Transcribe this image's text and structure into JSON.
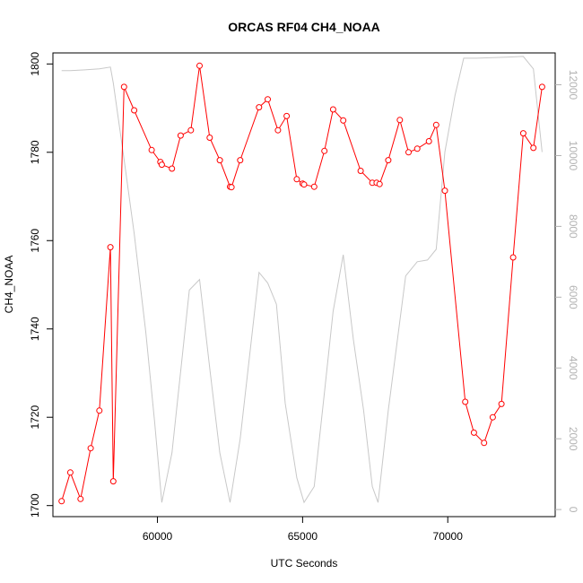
{
  "chart_data": {
    "type": "line",
    "title": "ORCAS RF04 CH4_NOAA",
    "xlabel": "UTC Seconds",
    "ylabel": "CH4_NOAA",
    "xlim": [
      56400,
      73700
    ],
    "ylim": [
      1697.5,
      1802.5
    ],
    "y2lim": [
      -200,
      12900
    ],
    "x_ticks": [
      60000,
      65000,
      70000
    ],
    "y_ticks": [
      1700,
      1720,
      1740,
      1760,
      1780,
      1800
    ],
    "y2_ticks": [
      0,
      2000,
      4000,
      6000,
      8000,
      10000,
      12000
    ],
    "grid": false,
    "legend": "none",
    "series": [
      {
        "axis": "left",
        "color": "#ff0000",
        "marker": "circle-open",
        "x": [
          56700,
          57000,
          57350,
          57700,
          58000,
          58380,
          58480,
          58850,
          59200,
          59800,
          60100,
          60150,
          60500,
          60800,
          61150,
          61450,
          61800,
          62150,
          62500,
          62550,
          62850,
          63500,
          63800,
          64150,
          64450,
          64800,
          65000,
          65050,
          65400,
          65750,
          66050,
          66400,
          67000,
          67400,
          67550,
          67650,
          67950,
          68350,
          68650,
          68950,
          69350,
          69600,
          69900,
          70600,
          70900,
          71250,
          71550,
          71850,
          72250,
          72600,
          72950,
          73250
        ],
        "y": [
          1701,
          1707.5,
          1701.5,
          1713,
          1721.5,
          1758.5,
          1705.5,
          1794.8,
          1789.5,
          1780.5,
          1777.8,
          1777.2,
          1776.3,
          1783.8,
          1785,
          1799.6,
          1783.3,
          1778.2,
          1772.2,
          1772.1,
          1778.2,
          1790.2,
          1792,
          1785,
          1788.2,
          1773.9,
          1772.9,
          1772.7,
          1772.2,
          1780.3,
          1789.7,
          1787.2,
          1775.8,
          1773.1,
          1773.1,
          1772.8,
          1778.2,
          1787.3,
          1780,
          1780.8,
          1782.5,
          1786.2,
          1771.3,
          1723.5,
          1716.5,
          1714.2,
          1720,
          1723,
          1756.2,
          1784.3,
          1781,
          1794.8
        ]
      },
      {
        "axis": "right",
        "color": "#c8c8c8",
        "marker": "none",
        "x": [
          56700,
          57000,
          57500,
          58000,
          58380,
          58480,
          58850,
          59200,
          59600,
          59900,
          60150,
          60500,
          61100,
          61450,
          61800,
          62150,
          62500,
          62850,
          63500,
          63800,
          64100,
          64400,
          64800,
          65050,
          65400,
          65750,
          66050,
          66400,
          66750,
          67100,
          67400,
          67600,
          67950,
          68550,
          68950,
          69300,
          69600,
          69900,
          70250,
          70550,
          71000,
          72000,
          72600,
          72950,
          73250
        ],
        "y": [
          12400,
          12400,
          12420,
          12450,
          12500,
          12050,
          9900,
          7800,
          5000,
          2500,
          200,
          1600,
          6200,
          6500,
          4000,
          1600,
          200,
          2000,
          6700,
          6400,
          5800,
          3000,
          900,
          200,
          650,
          3300,
          5600,
          7200,
          4800,
          2800,
          650,
          200,
          2800,
          6600,
          7000,
          7050,
          7350,
          10100,
          11700,
          12750,
          12750,
          12780,
          12800,
          12450,
          10100
        ]
      }
    ]
  }
}
